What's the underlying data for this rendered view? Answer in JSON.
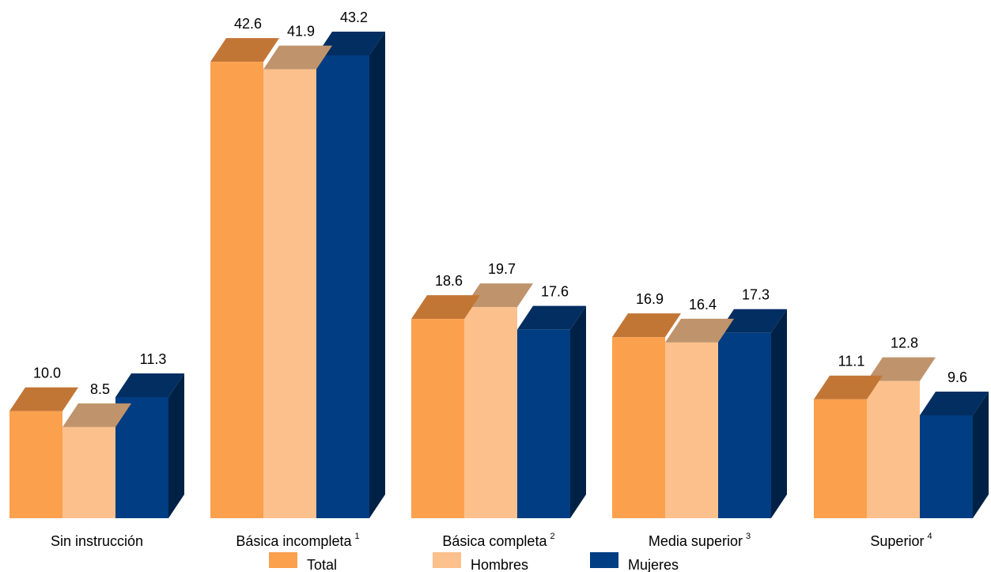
{
  "chart_data": {
    "type": "bar",
    "categories": [
      {
        "label": "Sin instrucción",
        "note": ""
      },
      {
        "label": "Básica incompleta",
        "note": "1"
      },
      {
        "label": "Básica completa",
        "note": "2"
      },
      {
        "label": "Media superior",
        "note": "3"
      },
      {
        "label": "Superior",
        "note": "4"
      }
    ],
    "series": [
      {
        "name": "Total",
        "color": "#FBA04D",
        "top_color": "#C27636",
        "values": [
          10.0,
          42.6,
          18.6,
          16.9,
          11.1
        ]
      },
      {
        "name": "Hombres",
        "color": "#FCC08C",
        "top_color": "#BF946C",
        "values": [
          8.5,
          41.9,
          19.7,
          16.4,
          12.8
        ]
      },
      {
        "name": "Mujeres",
        "color": "#003D82",
        "top_color": "#032E62",
        "side_color": "#002146",
        "values": [
          11.3,
          43.2,
          17.6,
          17.3,
          9.6
        ]
      }
    ],
    "ylim": [
      0,
      43.2
    ],
    "style": "3d-column",
    "legend_position": "bottom",
    "grid": false,
    "title": "",
    "xlabel": "",
    "ylabel": ""
  }
}
